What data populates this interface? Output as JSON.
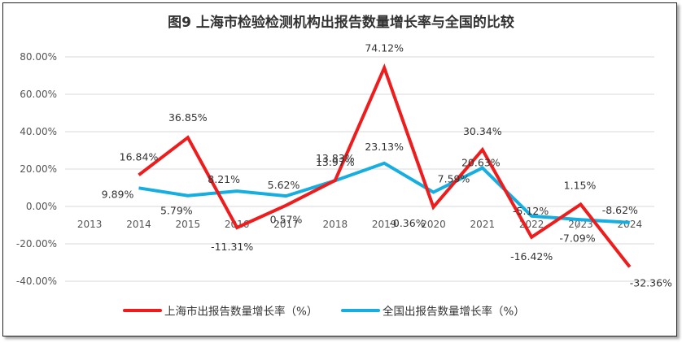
{
  "chart_data": {
    "type": "line",
    "title": "图9 上海市检验检测机构出报告数量增长率与全国的比较",
    "categories": [
      "2013",
      "2014",
      "2015",
      "2016",
      "2017",
      "2018",
      "2019",
      "2020",
      "2021",
      "2022",
      "2023",
      "2024"
    ],
    "ylim": [
      -40,
      80
    ],
    "yticks": [
      "80.00%",
      "60.00%",
      "40.00%",
      "20.00%",
      "0.00%",
      "-20.00%",
      "-40.00%"
    ],
    "ytick_values": [
      80,
      60,
      40,
      20,
      0,
      -20,
      -40
    ],
    "grid": true,
    "legend_position": "bottom",
    "series": [
      {
        "name": "上海市出报告数量增长率（%）",
        "color": "#ee1c1c",
        "values": [
          null,
          16.84,
          36.85,
          -11.31,
          0.57,
          13.97,
          74.12,
          -0.36,
          30.34,
          -16.42,
          1.15,
          -32.36
        ],
        "labels": [
          null,
          "16.84%",
          "36.85%",
          "-11.31%",
          "0.57%",
          "13.97%",
          "74.12%",
          "-0.36%",
          "30.34%",
          "-16.42%",
          "1.15%",
          "-32.36%"
        ]
      },
      {
        "name": "全国出报告数量增长率（%）",
        "color": "#16aee0",
        "values": [
          null,
          9.89,
          5.79,
          8.21,
          5.62,
          13.83,
          23.13,
          7.59,
          20.63,
          -5.12,
          -7.09,
          -8.62
        ],
        "labels": [
          null,
          "9.89%",
          "5.79%",
          "8.21%",
          "5.62%",
          "13.83%",
          "23.13%",
          "7.59%",
          "20.63%",
          "-5.12%",
          "-7.09%",
          "-8.62%"
        ]
      }
    ]
  }
}
